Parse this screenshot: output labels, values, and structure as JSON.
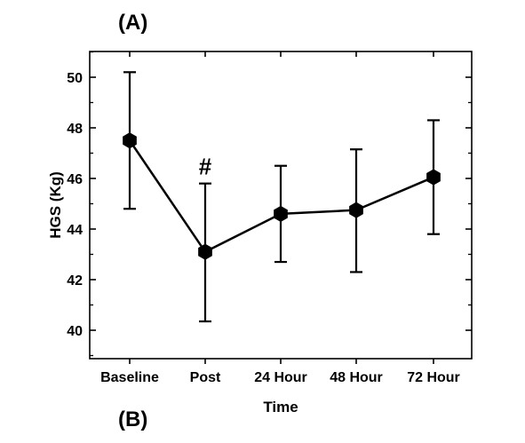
{
  "panel_labels": {
    "top": "(A)",
    "bottom": "(B)"
  },
  "chart_data": {
    "type": "line",
    "xlabel": "Time",
    "ylabel": "HGS (Kg)",
    "categories": [
      "Baseline",
      "Post",
      "24 Hour",
      "48 Hour",
      "72 Hour"
    ],
    "series": [
      {
        "values": [
          47.5,
          43.1,
          44.6,
          44.75,
          46.05
        ],
        "error_upper": [
          50.2,
          45.8,
          46.5,
          47.15,
          48.3
        ],
        "error_lower": [
          44.8,
          40.35,
          42.7,
          42.3,
          43.8
        ]
      }
    ],
    "ylim": [
      39,
      51
    ],
    "yticks": [
      40,
      42,
      44,
      46,
      48,
      50
    ],
    "grid": false,
    "legend": "none",
    "marker": "hexagon",
    "color": "#000000",
    "annotations": [
      {
        "category": "Post",
        "text": "#"
      }
    ]
  }
}
